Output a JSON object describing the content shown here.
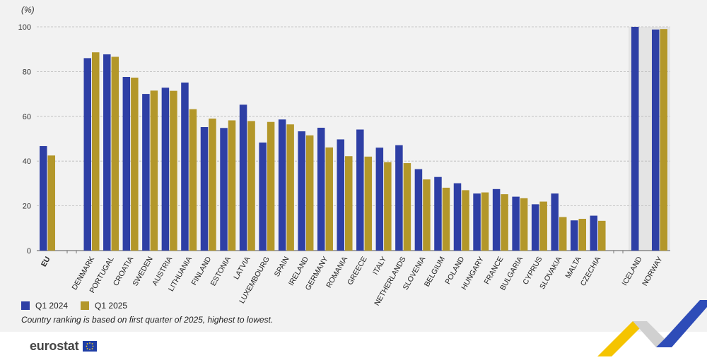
{
  "chart_data": {
    "type": "bar",
    "ylabel": "(%)",
    "ylim": [
      0,
      100
    ],
    "yticks": [
      0,
      20,
      40,
      60,
      80,
      100
    ],
    "grid": true,
    "legend_position": "bottom-left",
    "categories": [
      "EU",
      "DENMARK",
      "PORTUGAL",
      "CROATIA",
      "SWEDEN",
      "AUSTRIA",
      "LITHUANIA",
      "FINLAND",
      "ESTONIA",
      "LATVIA",
      "LUXEMBOURG",
      "SPAIN",
      "IRELAND",
      "GERMANY",
      "ROMANIA",
      "GREECE",
      "ITALY",
      "NETHERLANDS",
      "SLOVENIA",
      "BELGIUM",
      "POLAND",
      "HUNGARY",
      "FRANCE",
      "BULGARIA",
      "CYPRUS",
      "SLOVAKIA",
      "MALTA",
      "CZECHIA",
      "ICELAND",
      "NORWAY"
    ],
    "series": [
      {
        "name": "Q1 2024",
        "color": "#2e3fa5",
        "values": [
          46.7,
          86,
          87.7,
          77.6,
          70,
          72.8,
          75.1,
          55.2,
          54.8,
          65.2,
          48.3,
          58.6,
          53.3,
          54.9,
          49.7,
          54.1,
          46,
          47.1,
          36.4,
          32.9,
          30.1,
          25.5,
          27.5,
          24.1,
          20.7,
          25.5,
          13.5,
          15.6,
          100,
          98.8
        ]
      },
      {
        "name": "Q1 2025",
        "color": "#b3972a",
        "values": [
          42.5,
          88.6,
          86.6,
          77.3,
          71.5,
          71.4,
          63.2,
          59,
          58.2,
          57.9,
          57.5,
          56.4,
          51.5,
          46.1,
          42.2,
          42,
          39.5,
          39.1,
          31.8,
          28.1,
          27,
          26,
          25.2,
          23.4,
          21.9,
          15,
          14.2,
          13.3,
          null,
          99
        ]
      }
    ]
  },
  "legend": {
    "q1_2024": "Q1 2024",
    "q1_2025": "Q1 2025"
  },
  "note": "Country ranking is based on first quarter of 2025, highest to lowest.",
  "logo": {
    "text": "eurostat"
  }
}
